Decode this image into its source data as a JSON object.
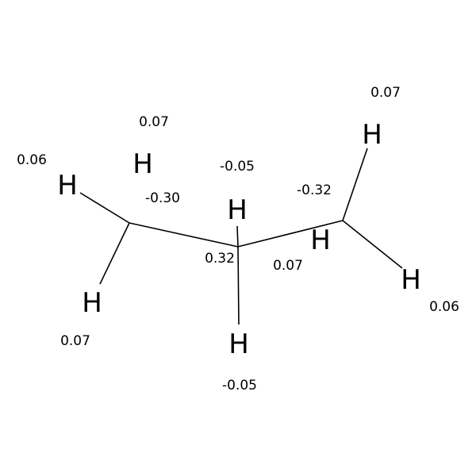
{
  "molecule": {
    "atoms": [
      {
        "id": "h1",
        "symbol": "H"
      },
      {
        "id": "h2",
        "symbol": "H"
      },
      {
        "id": "h3",
        "symbol": "H"
      },
      {
        "id": "h4",
        "symbol": "H"
      },
      {
        "id": "h5",
        "symbol": "H"
      },
      {
        "id": "h6",
        "symbol": "H"
      },
      {
        "id": "h7",
        "symbol": "H"
      },
      {
        "id": "h8",
        "symbol": "H"
      }
    ],
    "charges": [
      {
        "id": "q1",
        "value": "0.07"
      },
      {
        "id": "q2",
        "value": "0.06"
      },
      {
        "id": "q3",
        "value": "-0.30"
      },
      {
        "id": "q4",
        "value": "0.07"
      },
      {
        "id": "q5",
        "value": "-0.05"
      },
      {
        "id": "q6",
        "value": "0.32"
      },
      {
        "id": "q7",
        "value": "-0.05"
      },
      {
        "id": "q8",
        "value": "0.07"
      },
      {
        "id": "q9",
        "value": "-0.32"
      },
      {
        "id": "q10",
        "value": "0.07"
      },
      {
        "id": "q11",
        "value": "0.06"
      }
    ]
  }
}
